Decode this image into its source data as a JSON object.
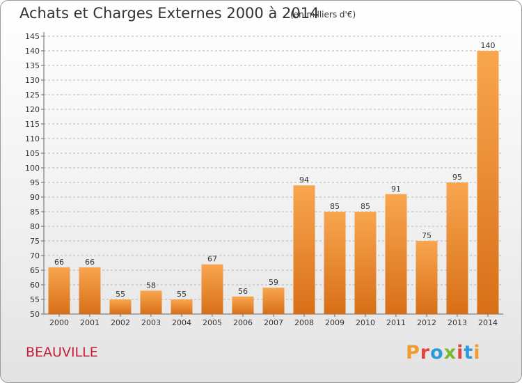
{
  "header": {
    "title": "Achats et Charges Externes 2000 à 2014",
    "unit": "(en milliers d'€)"
  },
  "footer": {
    "commune": "BEAUVILLE",
    "brand": "Proxiti"
  },
  "colors": {
    "bar_light": "#f8a64f",
    "bar_dark": "#d86f18",
    "commune": "#c41f3a"
  },
  "chart_data": {
    "type": "bar",
    "title": "Achats et Charges Externes 2000 à 2014",
    "subtitle": "(en milliers d'€)",
    "xlabel": "",
    "ylabel": "",
    "ylim": [
      50,
      145
    ],
    "yticks": [
      50,
      55,
      60,
      65,
      70,
      75,
      80,
      85,
      90,
      95,
      100,
      105,
      110,
      115,
      120,
      125,
      130,
      135,
      140,
      145
    ],
    "grid": "horizontal dashed",
    "categories": [
      "2000",
      "2001",
      "2002",
      "2003",
      "2004",
      "2005",
      "2006",
      "2007",
      "2008",
      "2009",
      "2010",
      "2011",
      "2012",
      "2013",
      "2014"
    ],
    "values": [
      66,
      66,
      55,
      58,
      55,
      67,
      56,
      59,
      94,
      85,
      85,
      91,
      75,
      95,
      140
    ]
  }
}
